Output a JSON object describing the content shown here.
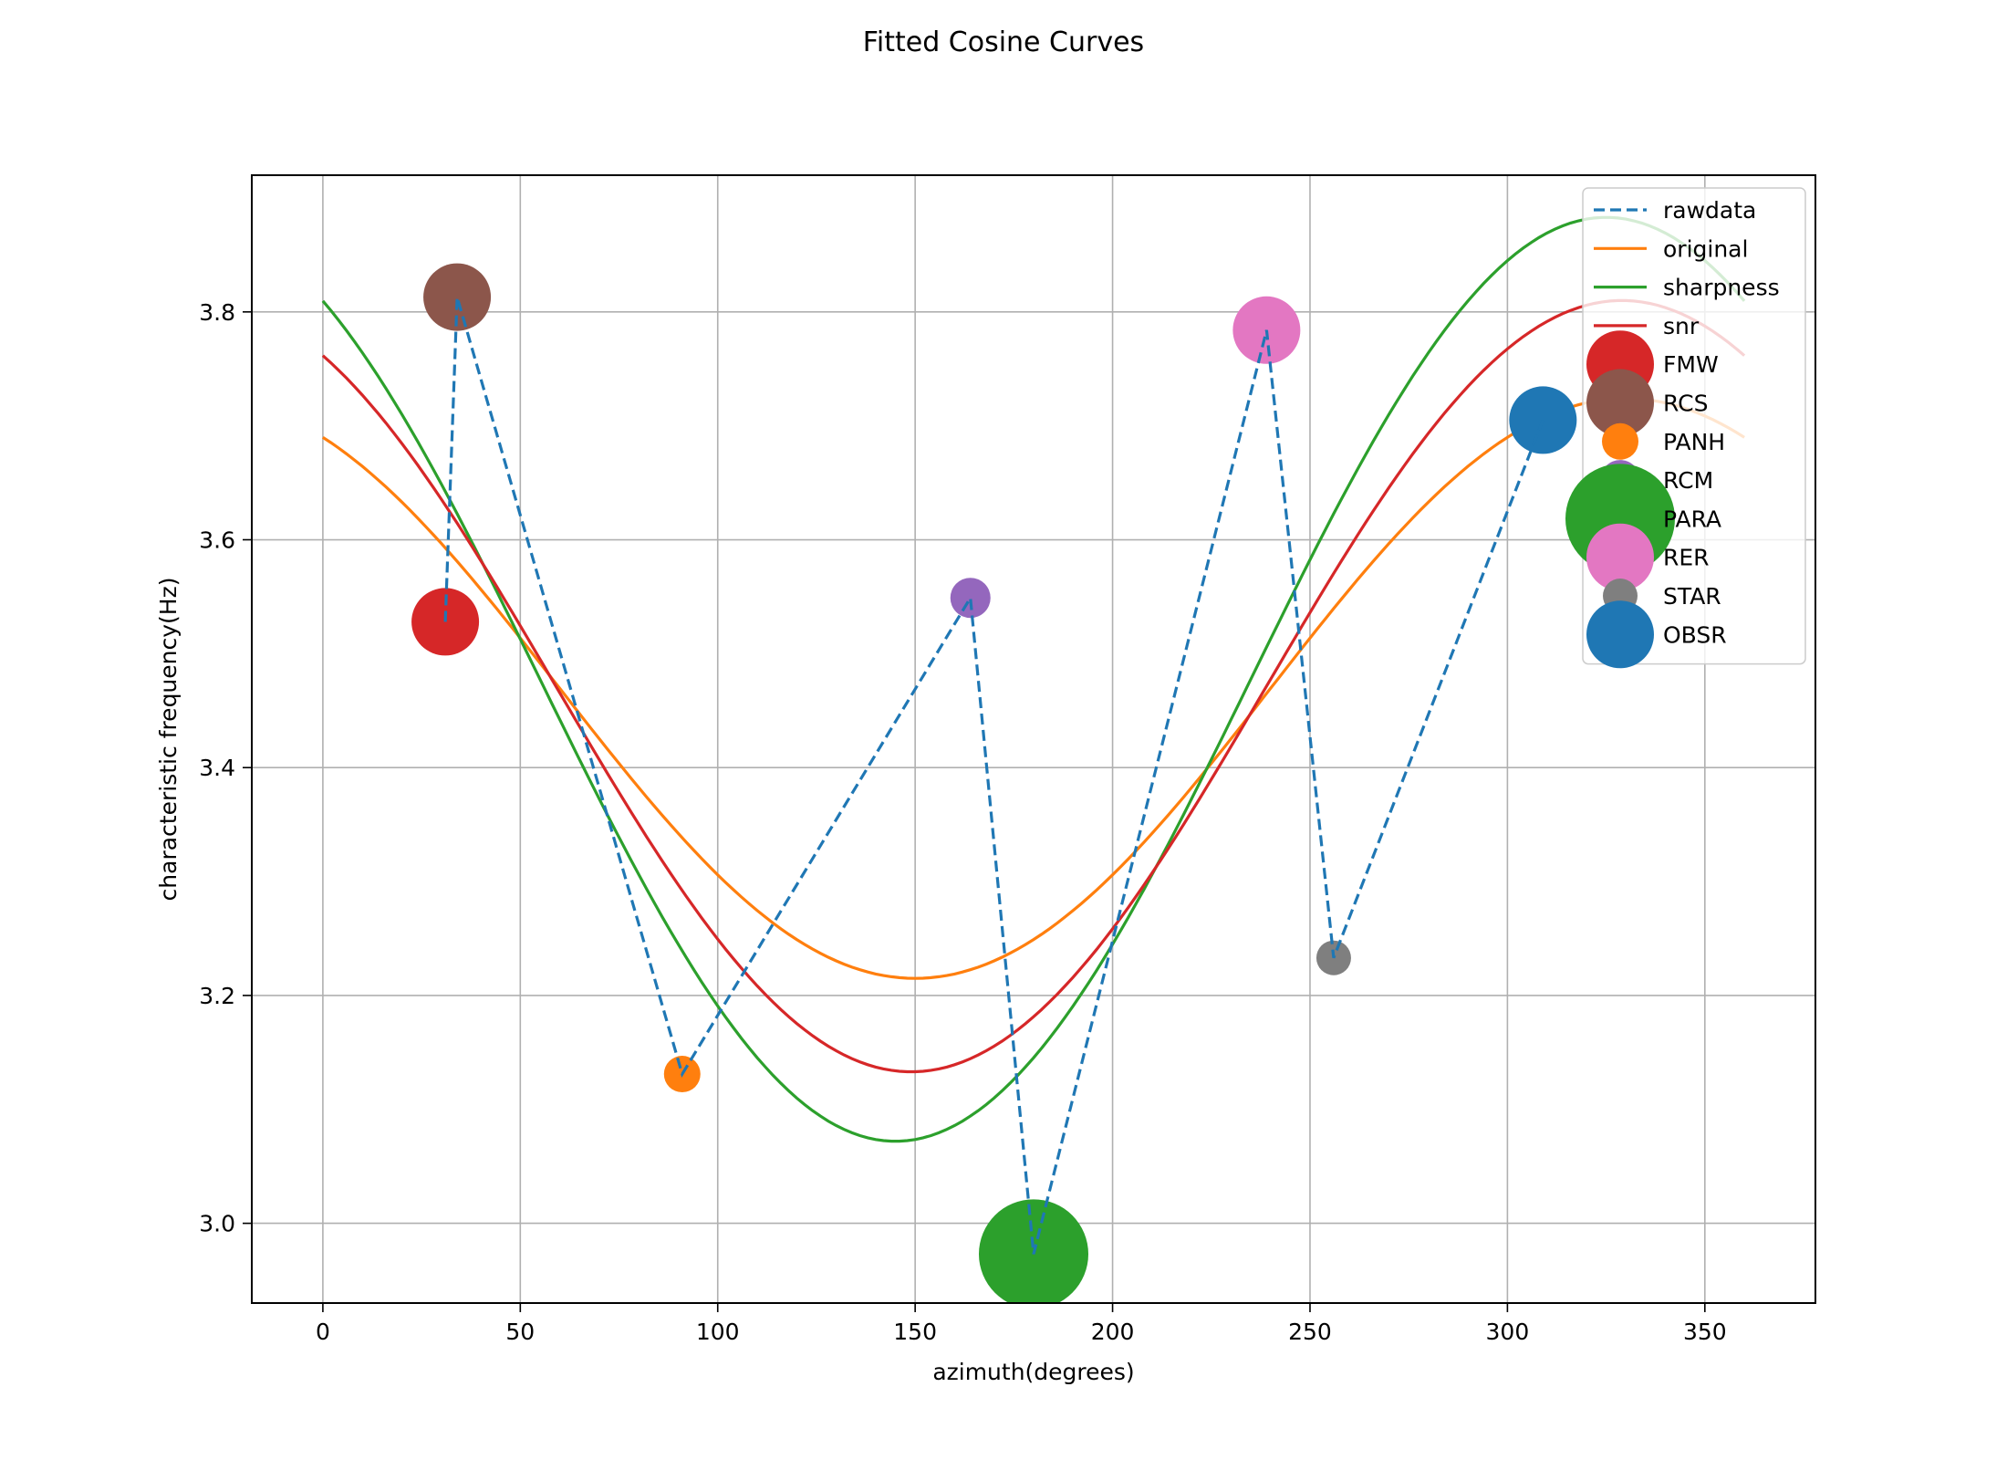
{
  "chart_data": {
    "type": "line",
    "title": "Fitted Cosine Curves",
    "xlabel": "azimuth(degrees)",
    "ylabel": "characteristic frequency(Hz)",
    "xlim": [
      -18,
      378
    ],
    "ylim": [
      2.93,
      3.92
    ],
    "xticks": [
      0,
      50,
      100,
      150,
      200,
      250,
      300,
      350
    ],
    "yticks": [
      3.0,
      3.2,
      3.4,
      3.6,
      3.8
    ],
    "ytick_labels": [
      "3.0",
      "3.2",
      "3.4",
      "3.6",
      "3.8"
    ],
    "grid": true,
    "legend_position": "top-right",
    "colors": {
      "blue": "#1f77b4",
      "orange": "#ff7f0e",
      "green": "#2ca02c",
      "red": "#d62728",
      "purple": "#9467bd",
      "brown": "#8c564b",
      "pink": "#e377c2",
      "gray": "#7f7f7f"
    },
    "rawdata": {
      "name": "rawdata",
      "color": "#1f77b4",
      "style": "dashed",
      "x": [
        31,
        34,
        91,
        164,
        180,
        239,
        256,
        309
      ],
      "y": [
        3.528,
        3.813,
        3.131,
        3.549,
        2.973,
        3.784,
        3.233,
        3.705
      ]
    },
    "curves": [
      {
        "name": "original",
        "color": "#ff7f0e",
        "mean": 3.4695,
        "amplitude": 0.2545,
        "phase_deg": 330
      },
      {
        "name": "sharpness",
        "color": "#2ca02c",
        "mean": 3.4775,
        "amplitude": 0.4055,
        "phase_deg": 325
      },
      {
        "name": "snr",
        "color": "#d62728",
        "mean": 3.4715,
        "amplitude": 0.3385,
        "phase_deg": 329
      }
    ],
    "curve_x_range": [
      0,
      360
    ],
    "stations": [
      {
        "name": "FMW",
        "x": 31,
        "y": 3.528,
        "color": "#d62728",
        "size": 37
      },
      {
        "name": "RCS",
        "x": 34,
        "y": 3.813,
        "color": "#8c564b",
        "size": 37
      },
      {
        "name": "PANH",
        "x": 91,
        "y": 3.131,
        "color": "#ff7f0e",
        "size": 20
      },
      {
        "name": "RCM",
        "x": 164,
        "y": 3.549,
        "color": "#9467bd",
        "size": 22
      },
      {
        "name": "PARA",
        "x": 180,
        "y": 2.973,
        "color": "#2ca02c",
        "size": 60
      },
      {
        "name": "RER",
        "x": 239,
        "y": 3.784,
        "color": "#e377c2",
        "size": 37
      },
      {
        "name": "STAR",
        "x": 256,
        "y": 3.233,
        "color": "#7f7f7f",
        "size": 19
      },
      {
        "name": "OBSR",
        "x": 309,
        "y": 3.705,
        "color": "#1f77b4",
        "size": 37
      }
    ]
  }
}
